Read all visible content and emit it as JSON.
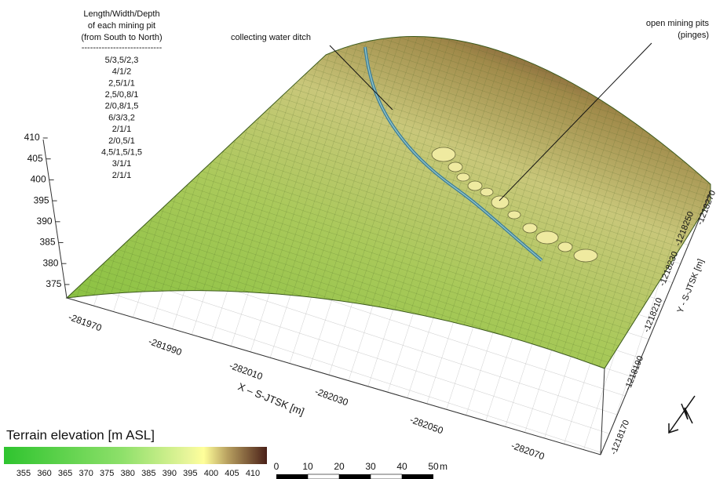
{
  "pit_table": {
    "title_lines": [
      "Length/Width/Depth",
      "of  each mining pit",
      "(from South to North)"
    ],
    "separator": "----------------------------",
    "rows": [
      "5/3,5/2,3",
      "4/1/2",
      "2,5/1/1",
      "2,5/0,8/1",
      "2/0,8/1,5",
      "6/3/3,2",
      "2/1/1",
      "2/0,5/1",
      "4,5/1,5/1,5",
      "3/1/1",
      "2/1/1"
    ]
  },
  "annotations": {
    "ditch": "collecting water ditch",
    "pits_lines": [
      "open mining pits",
      "(pinges)"
    ]
  },
  "z_axis": {
    "ticks": [
      "410",
      "405",
      "400",
      "395",
      "390",
      "385",
      "380",
      "375"
    ]
  },
  "x_axis": {
    "label": "X – S-JTSK [m]",
    "ticks": [
      "-281970",
      "-281990",
      "-282010",
      "-282030",
      "-282050",
      "-282070"
    ]
  },
  "y_axis": {
    "label": "Y - S-JTSK [m]",
    "ticks": [
      "-1218170",
      "-1218190",
      "-1218210",
      "-1218230",
      "-1218250",
      "-1218270"
    ]
  },
  "legend": {
    "title": "Terrain elevation [m ASL]",
    "ticks": [
      "355",
      "360",
      "365",
      "370",
      "375",
      "380",
      "385",
      "390",
      "395",
      "400",
      "405",
      "410"
    ]
  },
  "scale_bar": {
    "ticks": [
      "0",
      "10",
      "20",
      "30",
      "40",
      "50"
    ],
    "unit": "m"
  }
}
